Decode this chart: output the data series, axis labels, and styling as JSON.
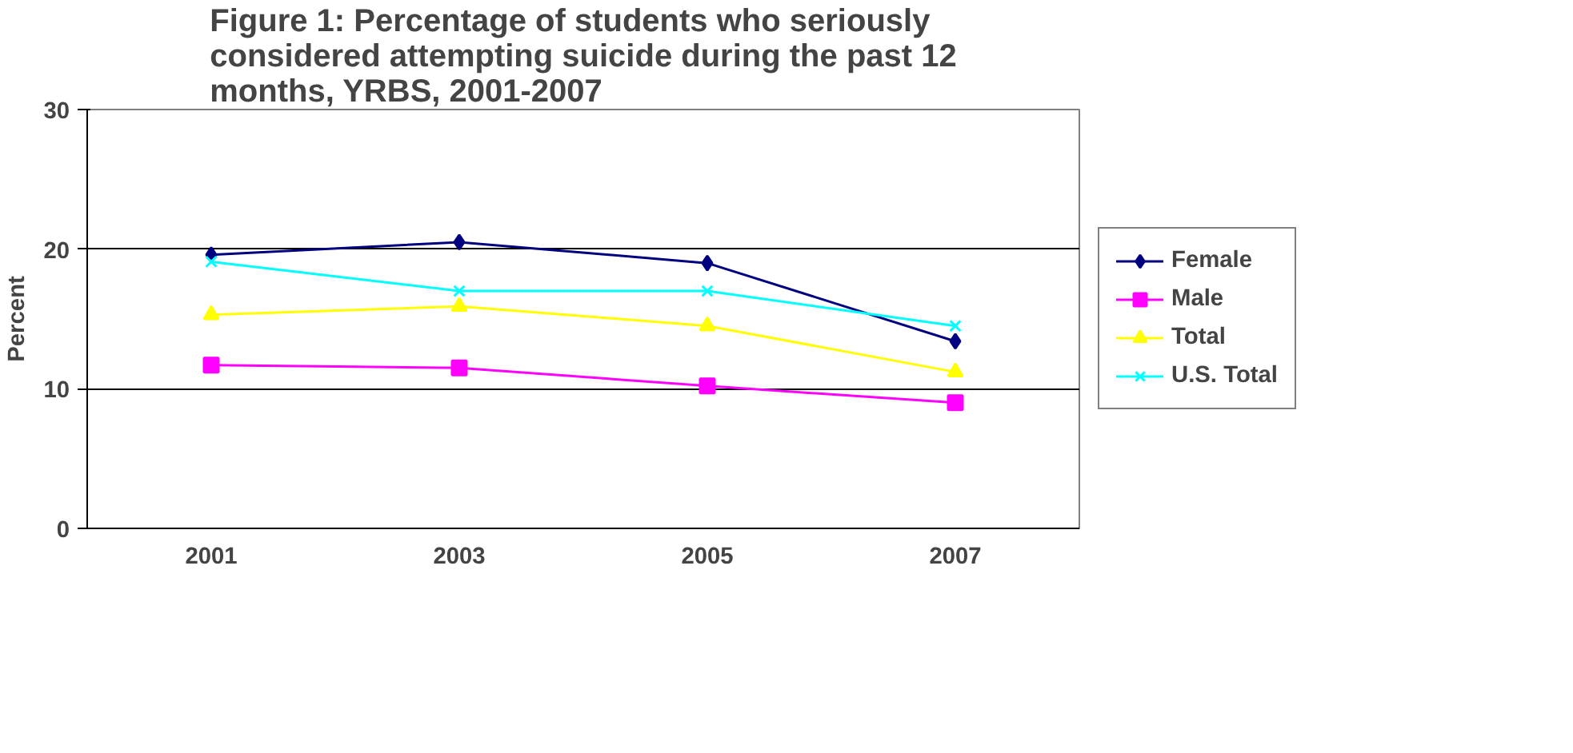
{
  "chart_data": {
    "type": "line",
    "title": "Figure 1: Percentage of students who seriously considered attempting suicide during the past 12 months, YRBS, 2001-2007",
    "ylabel": "Percent",
    "categories": [
      "2001",
      "2003",
      "2005",
      "2007"
    ],
    "ylim": [
      0,
      30
    ],
    "yticks": [
      0,
      10,
      20,
      30
    ],
    "grid": "y",
    "legend": "right",
    "line_style": "solid",
    "series": [
      {
        "name": "Female",
        "color": "#000080",
        "marker": "diamond",
        "values": [
          19.6,
          20.5,
          19.0,
          13.4
        ]
      },
      {
        "name": "Male",
        "color": "#ff00ff",
        "marker": "square",
        "values": [
          11.7,
          11.5,
          10.2,
          9.0
        ]
      },
      {
        "name": "Total",
        "color": "#ffff00",
        "marker": "triangle",
        "values": [
          15.3,
          15.9,
          14.5,
          11.2
        ]
      },
      {
        "name": "U.S. Total",
        "color": "#00ffff",
        "marker": "cross",
        "values": [
          19.1,
          17.0,
          17.0,
          14.5
        ]
      }
    ]
  }
}
